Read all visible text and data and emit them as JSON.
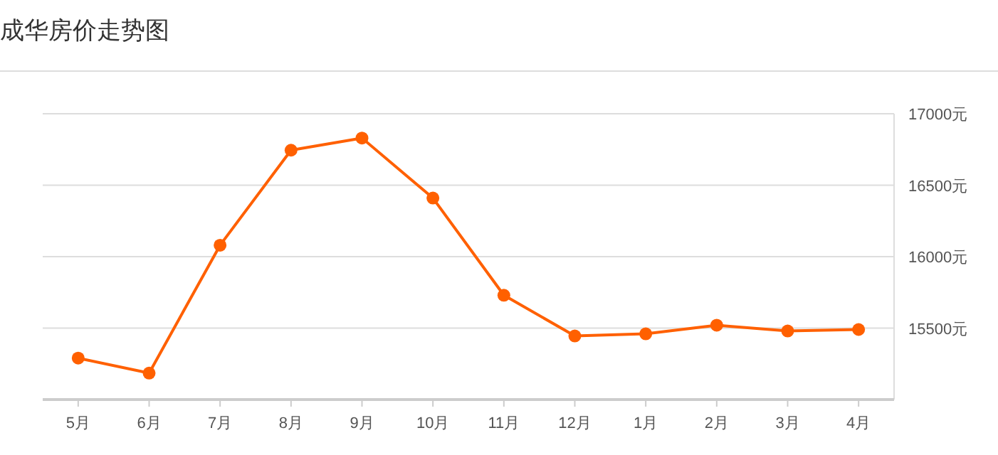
{
  "chart_data": {
    "type": "line",
    "title": "成华房价走势图",
    "categories": [
      "5月",
      "6月",
      "7月",
      "8月",
      "9月",
      "10月",
      "11月",
      "12月",
      "1月",
      "2月",
      "3月",
      "4月"
    ],
    "series": [
      {
        "color": "#ff6000",
        "values": [
          15290,
          15185,
          16080,
          16745,
          16830,
          16410,
          15730,
          15445,
          15460,
          15520,
          15480,
          15490
        ]
      }
    ],
    "ylim": [
      15000,
      17000
    ],
    "yticks": [
      {
        "value": 15500,
        "label": "15500元"
      },
      {
        "value": 16000,
        "label": "16000元"
      },
      {
        "value": 16500,
        "label": "16500元"
      },
      {
        "value": 17000,
        "label": "17000元"
      }
    ],
    "grid": "y",
    "marker": "circle",
    "line_style": "solid"
  }
}
